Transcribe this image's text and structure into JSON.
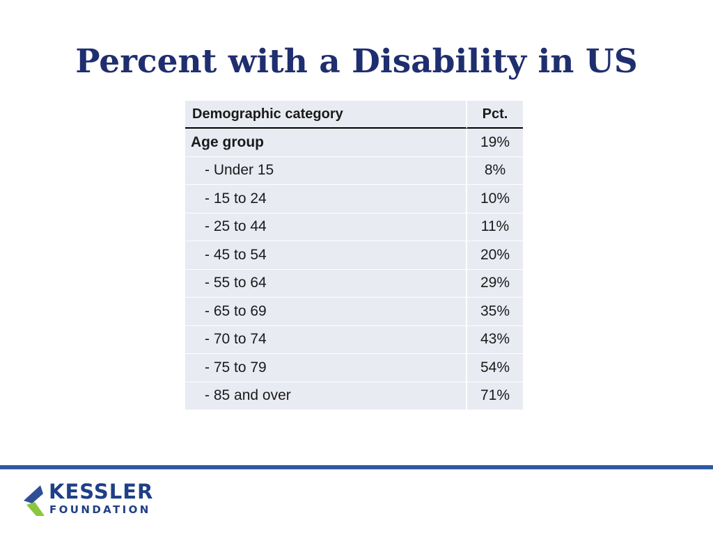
{
  "title": "Percent with a Disability in US",
  "table": {
    "headers": {
      "category": "Demographic category",
      "pct": "Pct."
    },
    "rows": [
      {
        "label": "Age group",
        "pct": "19%"
      },
      {
        "label": "- Under 15",
        "pct": "8%"
      },
      {
        "label": "- 15 to 24",
        "pct": "10%"
      },
      {
        "label": "- 25 to 44",
        "pct": "11%"
      },
      {
        "label": "- 45 to 54",
        "pct": "20%"
      },
      {
        "label": "- 55 to 64",
        "pct": "29%"
      },
      {
        "label": "- 65 to 69",
        "pct": "35%"
      },
      {
        "label": "- 70 to 74",
        "pct": "43%"
      },
      {
        "label": "- 75 to 79",
        "pct": "54%"
      },
      {
        "label": "- 85 and over",
        "pct": "71%"
      }
    ]
  },
  "logo": {
    "line1": "KESSLER",
    "line2": "FOUNDATION",
    "icon": "kessler-logo-icon"
  },
  "colors": {
    "title": "#1f2e6e",
    "bar": "#2e5aa3",
    "cell_bg": "#e9ebf2",
    "logo_blue": "#1f3f86",
    "logo_green": "#8cc63f"
  }
}
